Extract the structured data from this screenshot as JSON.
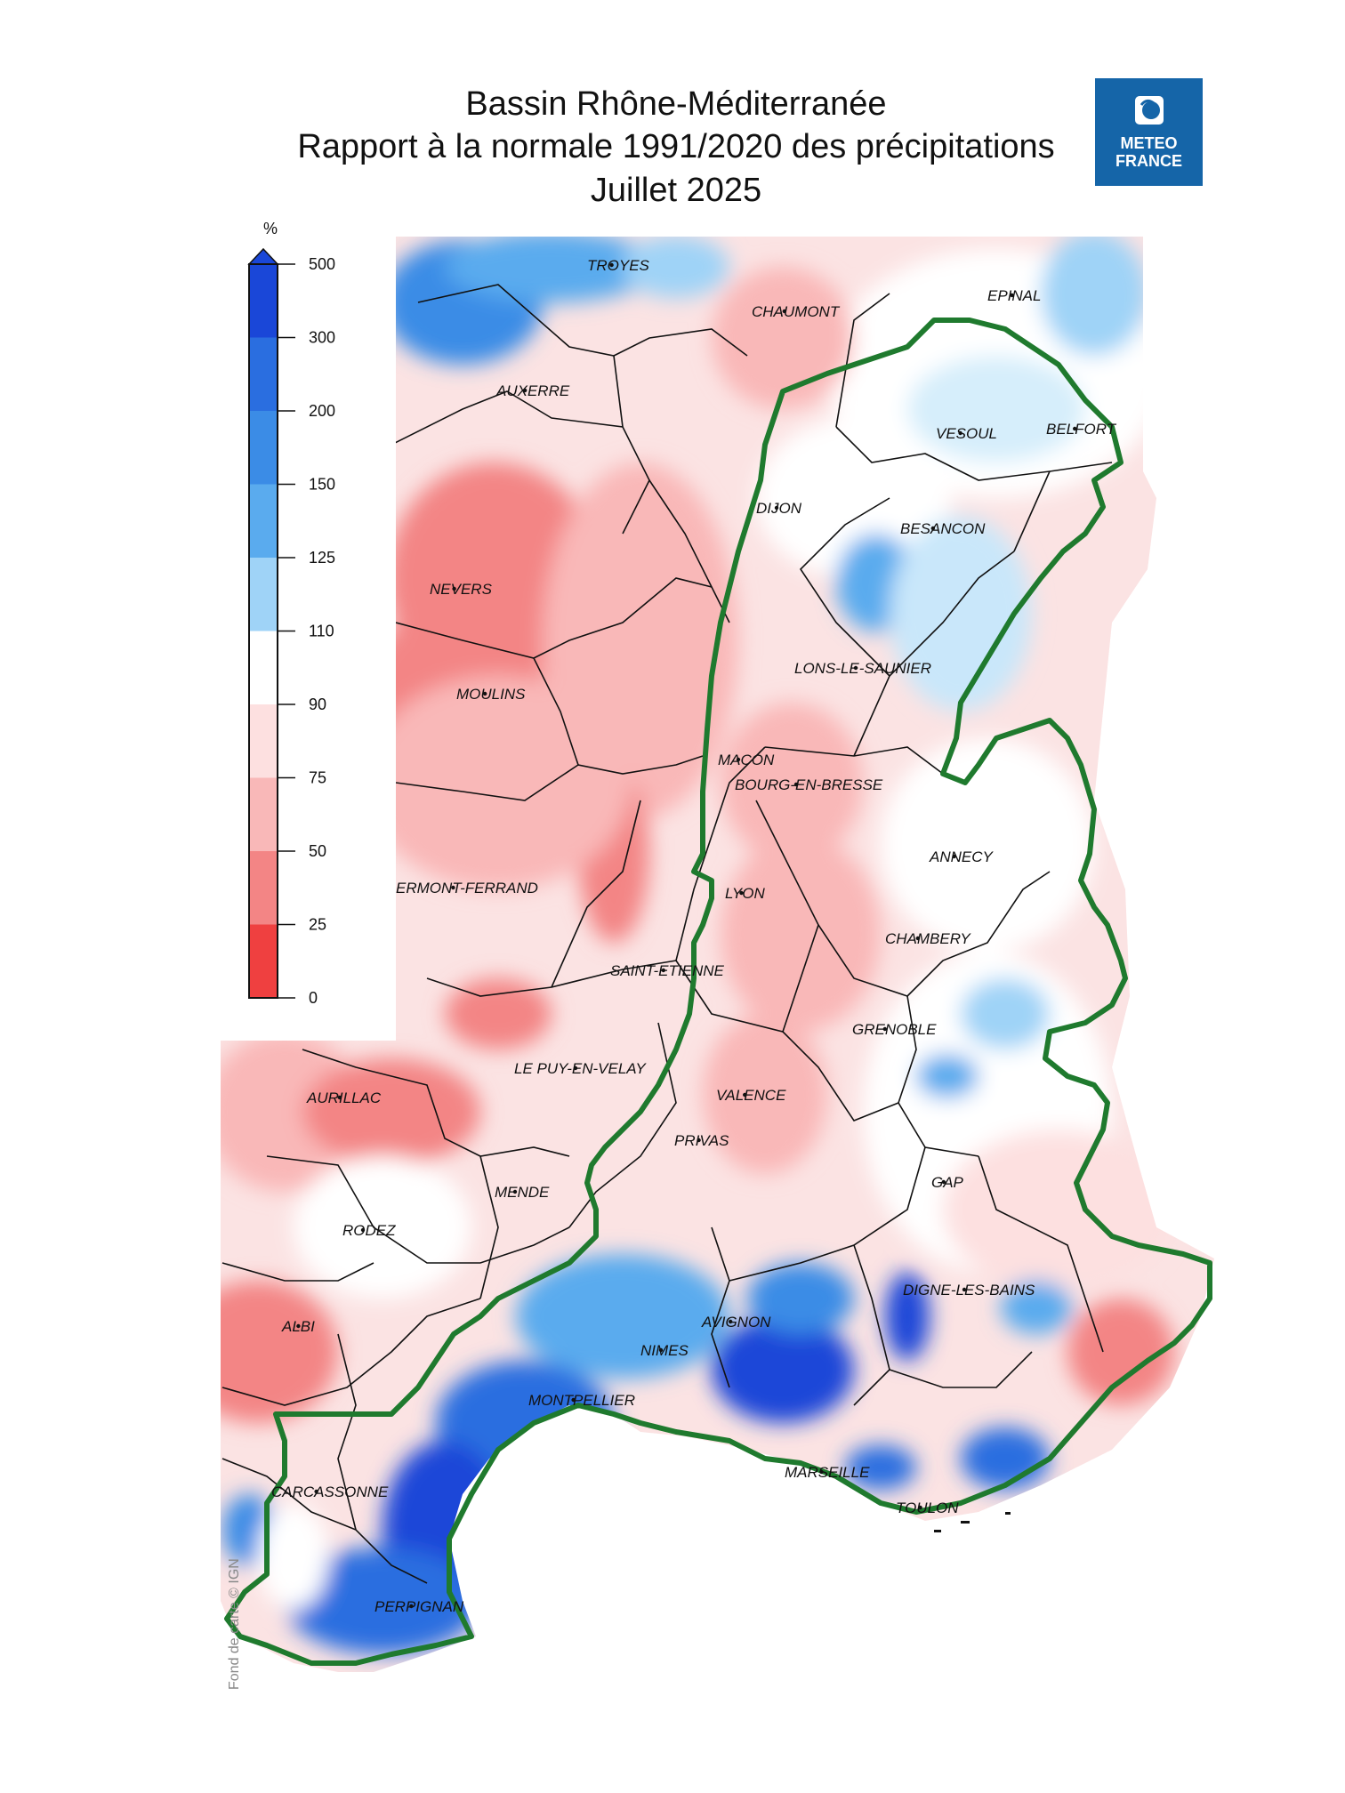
{
  "title": {
    "line1": "Bassin Rhône-Méditerranée",
    "line2": "Rapport à la normale 1991/2020 des précipitations",
    "line3": "Juillet 2025"
  },
  "logo": {
    "line1": "METEO",
    "line2": "FRANCE",
    "icon": "meteo-france-logo-icon"
  },
  "legend": {
    "unit": "%",
    "ticks": [
      "500",
      "300",
      "200",
      "150",
      "125",
      "110",
      "90",
      "75",
      "50",
      "25",
      "0"
    ],
    "colors": [
      "#1a47d8",
      "#2a6ee0",
      "#3b8ce6",
      "#5aabee",
      "#9fd3f7",
      "#ffffff",
      "#fde0e0",
      "#f9b8b8",
      "#f38585",
      "#ef4040"
    ]
  },
  "map": {
    "basin_outline_color": "#1f7a2e",
    "credit": "Fond de carte © IGN",
    "cities": [
      {
        "id": "troyes",
        "label": "TROYES"
      },
      {
        "id": "chaumont",
        "label": "CHAUMONT"
      },
      {
        "id": "epinal",
        "label": "EPINAL"
      },
      {
        "id": "auxerre",
        "label": "AUXERRE"
      },
      {
        "id": "vesoul",
        "label": "VESOUL"
      },
      {
        "id": "belfort",
        "label": "BELFORT"
      },
      {
        "id": "dijon",
        "label": "DIJON"
      },
      {
        "id": "besancon",
        "label": "BESANCON"
      },
      {
        "id": "nevers",
        "label": "NEVERS"
      },
      {
        "id": "lons",
        "label": "LONS-LE-SAUNIER"
      },
      {
        "id": "moulins",
        "label": "MOULINS"
      },
      {
        "id": "macon",
        "label": "MACON"
      },
      {
        "id": "bourg",
        "label": "BOURG-EN-BRESSE"
      },
      {
        "id": "annecy",
        "label": "ANNECY"
      },
      {
        "id": "clermont",
        "label": "ERMONT-FERRAND"
      },
      {
        "id": "lyon",
        "label": "LYON"
      },
      {
        "id": "chambery",
        "label": "CHAMBERY"
      },
      {
        "id": "saintetienne",
        "label": "SAINT-ETIENNE"
      },
      {
        "id": "grenoble",
        "label": "GRENOBLE"
      },
      {
        "id": "lepuy",
        "label": "LE PUY-EN-VELAY"
      },
      {
        "id": "aurillac",
        "label": "AURILLAC"
      },
      {
        "id": "valence",
        "label": "VALENCE"
      },
      {
        "id": "privas",
        "label": "PRIVAS"
      },
      {
        "id": "gap",
        "label": "GAP"
      },
      {
        "id": "mende",
        "label": "MENDE"
      },
      {
        "id": "rodez",
        "label": "RODEZ"
      },
      {
        "id": "digne",
        "label": "DIGNE-LES-BAINS"
      },
      {
        "id": "avignon",
        "label": "AVIGNON"
      },
      {
        "id": "albi",
        "label": "ALBI"
      },
      {
        "id": "nimes",
        "label": "NIMES"
      },
      {
        "id": "montpellier",
        "label": "MONTPELLIER"
      },
      {
        "id": "marseille",
        "label": "MARSEILLE"
      },
      {
        "id": "carcassonne",
        "label": "CARCASSONNE"
      },
      {
        "id": "toulon",
        "label": "TOULON"
      },
      {
        "id": "perpignan",
        "label": "PERPIGNAN"
      }
    ]
  }
}
